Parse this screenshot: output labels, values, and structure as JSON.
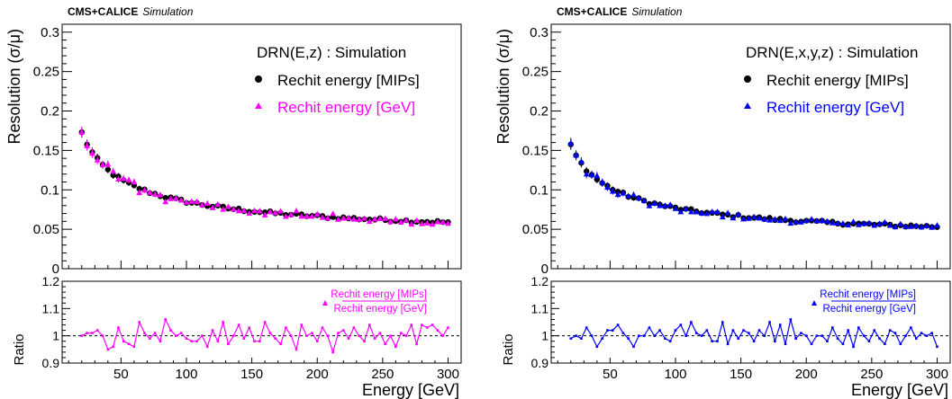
{
  "chart_data": [
    {
      "type": "scatter",
      "header_bold": "CMS+CALICE",
      "header_italic": "Simulation",
      "model_label": "DRN(E,z) : Simulation",
      "xlabel": "Energy [GeV]",
      "ylabel": "Resolution (σ/μ)",
      "ylim": [
        0,
        0.31
      ],
      "xlim": [
        5,
        310
      ],
      "xticks": [
        50,
        100,
        150,
        200,
        250,
        300
      ],
      "xtick_labels": [
        "50",
        "100",
        "150",
        "200",
        "250",
        "300"
      ],
      "yticks": [
        0,
        0.05,
        0.1,
        0.15,
        0.2,
        0.25,
        0.3
      ],
      "ytick_labels": [
        "0",
        "0.05",
        "0.1",
        "0.15",
        "0.2",
        "0.25",
        "0.3"
      ],
      "legend_position": "top-right",
      "series": [
        {
          "name": "Rechit energy [MIPs]",
          "marker": "circle",
          "color": "#000000"
        },
        {
          "name": "Rechit energy [GeV]",
          "marker": "triangle",
          "color": "#ff00ff"
        }
      ],
      "energy_range": [
        20,
        300
      ],
      "energy_step": 4,
      "resolution_model_mips": {
        "a": 0.75,
        "b": 0.04
      },
      "ratio": {
        "ylabel": "Ratio",
        "ylim": [
          0.9,
          1.2
        ],
        "yticks": [
          0.9,
          1,
          1.1,
          1.2
        ],
        "ytick_labels": [
          "0.9",
          "1",
          "1.1",
          "1.2"
        ],
        "reference_line": 1,
        "numerator": "Rechit energy [MIPs]",
        "denominator": "Rechit energy [GeV]",
        "color": "#ff00ff",
        "values": [
          1.0,
          1.01,
          1.01,
          1.02,
          1.0,
          0.95,
          0.96,
          1.03,
          0.98,
          0.97,
          0.96,
          1.05,
          1.01,
          0.99,
          1.01,
          0.98,
          1.06,
          1.02,
          1.0,
          1.01,
          0.99,
          0.98,
          0.98,
          1.0,
          0.96,
          1.02,
          0.98,
          1.05,
          0.97,
          1.0,
          1.04,
          0.99,
          1.03,
          0.98,
          0.98,
          1.05,
          1.01,
          0.99,
          0.97,
          1.03,
          1.0,
          0.95,
          1.04,
          1.0,
          1.01,
          0.98,
          1.03,
          1.0,
          0.94,
          1.01,
          1.02,
          0.99,
          1.03,
          1.0,
          0.98,
          1.04,
          0.99,
          1.01,
          0.97,
          1.0,
          0.96,
          1.01,
          1.0,
          1.04,
          0.97,
          1.04,
          1.03,
          1.04,
          1.02,
          1.0,
          1.03
        ]
      }
    },
    {
      "type": "scatter",
      "header_bold": "CMS+CALICE",
      "header_italic": "Simulation",
      "model_label": "DRN(E,x,y,z) : Simulation",
      "xlabel": "Energy [GeV]",
      "ylabel": "Resolution (σ/μ)",
      "ylim": [
        0,
        0.31
      ],
      "xlim": [
        5,
        310
      ],
      "xticks": [
        50,
        100,
        150,
        200,
        250,
        300
      ],
      "xtick_labels": [
        "50",
        "100",
        "150",
        "200",
        "250",
        "300"
      ],
      "yticks": [
        0,
        0.05,
        0.1,
        0.15,
        0.2,
        0.25,
        0.3
      ],
      "ytick_labels": [
        "0",
        "0.05",
        "0.1",
        "0.15",
        "0.2",
        "0.25",
        "0.3"
      ],
      "legend_position": "top-right",
      "series": [
        {
          "name": "Rechit energy [MIPs]",
          "marker": "circle",
          "color": "#000000"
        },
        {
          "name": "Rechit energy [GeV]",
          "marker": "triangle",
          "color": "#0000ff"
        }
      ],
      "energy_range": [
        20,
        300
      ],
      "energy_step": 4,
      "resolution_model_mips": {
        "a": 0.68,
        "b": 0.036
      },
      "ratio": {
        "ylabel": "Ratio",
        "ylim": [
          0.9,
          1.2
        ],
        "yticks": [
          0.9,
          1,
          1.1,
          1.2
        ],
        "ytick_labels": [
          "0.9",
          "1",
          "1.1",
          "1.2"
        ],
        "reference_line": 1,
        "numerator": "Rechit energy [MIPs]",
        "denominator": "Rechit energy [GeV]",
        "color": "#0000ff",
        "values": [
          0.99,
          1.0,
          0.99,
          1.03,
          1.0,
          0.96,
          0.99,
          1.02,
          1.02,
          1.04,
          1.01,
          0.99,
          0.96,
          1.0,
          1.0,
          1.03,
          1.0,
          1.02,
          0.99,
          0.98,
          1.02,
          1.04,
          1.0,
          1.05,
          1.01,
          1.0,
          1.02,
          0.98,
          0.98,
          1.05,
          0.97,
          1.02,
          0.99,
          1.02,
          1.01,
          0.98,
          1.02,
          1.0,
          1.05,
          0.98,
          1.04,
          0.97,
          1.06,
          0.99,
          1.01,
          1.0,
          0.97,
          1.0,
          1.0,
          0.98,
          1.03,
          0.99,
          0.97,
          1.02,
          0.96,
          1.03,
          1.0,
          0.98,
          1.02,
          0.99,
          0.97,
          1.02,
          1.01,
          0.97,
          1.0,
          1.03,
          0.99,
          1.01,
          1.0,
          1.01,
          0.96
        ]
      }
    }
  ]
}
